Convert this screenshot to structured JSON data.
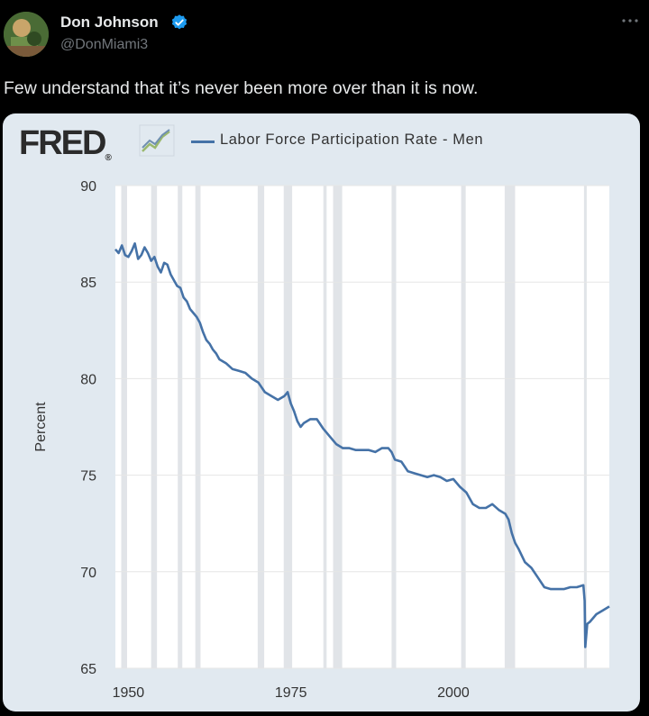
{
  "tweet": {
    "author_name": "Don Johnson",
    "author_handle": "@DonMiami3",
    "text": "Few understand that it’s never been more over than it is now.",
    "more_icon": "more-horizontal-icon",
    "verified_icon": "verified-badge-icon",
    "verified_color": "#1d9bf0"
  },
  "fred": {
    "logo_text": "FRED",
    "logo_mark": "®",
    "logo_icon": "chart-trend-icon"
  },
  "chart_data": {
    "type": "line",
    "legend": [
      "Labor Force Participation Rate - Men"
    ],
    "ylabel": "Percent",
    "xlabel": "",
    "ylim": [
      65,
      90
    ],
    "yticks": [
      90,
      85,
      80,
      75,
      70,
      65
    ],
    "xticks": [
      "1950",
      "1975",
      "2000"
    ],
    "xlim": [
      1948,
      2024
    ],
    "grid": true,
    "legend_position": "top",
    "line_color": "#4572a7",
    "recession_color": "#e1e4e8",
    "recessions": [
      [
        1948.9,
        1949.8
      ],
      [
        1953.5,
        1954.4
      ],
      [
        1957.6,
        1958.3
      ],
      [
        1960.3,
        1961.1
      ],
      [
        1969.9,
        1970.9
      ],
      [
        1973.9,
        1975.2
      ],
      [
        1980.0,
        1980.5
      ],
      [
        1981.5,
        1982.9
      ],
      [
        1990.5,
        1991.2
      ],
      [
        2001.2,
        2001.9
      ],
      [
        2007.9,
        2009.5
      ],
      [
        2020.1,
        2020.4
      ]
    ],
    "series": [
      {
        "name": "Labor Force Participation Rate - Men",
        "x": [
          1948,
          1948.5,
          1949,
          1949.5,
          1950,
          1950.5,
          1951,
          1951.5,
          1952,
          1952.5,
          1953,
          1953.5,
          1954,
          1954.5,
          1955,
          1955.5,
          1956,
          1956.5,
          1957,
          1957.5,
          1958,
          1958.5,
          1959,
          1959.5,
          1960,
          1960.5,
          1961,
          1961.5,
          1962,
          1962.5,
          1963,
          1963.5,
          1964,
          1965,
          1966,
          1967,
          1968,
          1969,
          1970,
          1971,
          1972,
          1973,
          1974,
          1974.5,
          1975,
          1975.5,
          1976,
          1976.5,
          1977,
          1978,
          1979,
          1980,
          1981,
          1982,
          1983,
          1984,
          1985,
          1986,
          1987,
          1988,
          1989,
          1990,
          1990.5,
          1991,
          1992,
          1993,
          1994,
          1995,
          1996,
          1997,
          1998,
          1999,
          2000,
          2001,
          2002,
          2003,
          2004,
          2005,
          2006,
          2007,
          2008,
          2008.5,
          2009,
          2009.5,
          2010,
          2011,
          2012,
          2013,
          2014,
          2015,
          2016,
          2017,
          2018,
          2019,
          2020,
          2020.2,
          2020.3,
          2020.6,
          2021,
          2022,
          2023,
          2024
        ],
        "values": [
          86.7,
          86.5,
          86.9,
          86.4,
          86.3,
          86.6,
          87.0,
          86.2,
          86.4,
          86.8,
          86.5,
          86.1,
          86.3,
          85.8,
          85.5,
          86.0,
          85.9,
          85.4,
          85.1,
          84.8,
          84.7,
          84.2,
          84.0,
          83.6,
          83.4,
          83.2,
          82.9,
          82.4,
          82.0,
          81.8,
          81.5,
          81.3,
          81.0,
          80.8,
          80.5,
          80.4,
          80.3,
          80.0,
          79.8,
          79.3,
          79.1,
          78.9,
          79.1,
          79.3,
          78.7,
          78.3,
          77.8,
          77.5,
          77.7,
          77.9,
          77.9,
          77.4,
          77.0,
          76.6,
          76.4,
          76.4,
          76.3,
          76.3,
          76.3,
          76.2,
          76.4,
          76.4,
          76.2,
          75.8,
          75.7,
          75.2,
          75.1,
          75.0,
          74.9,
          75.0,
          74.9,
          74.7,
          74.8,
          74.4,
          74.1,
          73.5,
          73.3,
          73.3,
          73.5,
          73.2,
          73.0,
          72.7,
          72.0,
          71.5,
          71.2,
          70.5,
          70.2,
          69.7,
          69.2,
          69.1,
          69.1,
          69.1,
          69.2,
          69.2,
          69.3,
          68.5,
          66.1,
          67.3,
          67.4,
          67.8,
          68.0,
          68.2
        ]
      }
    ]
  }
}
